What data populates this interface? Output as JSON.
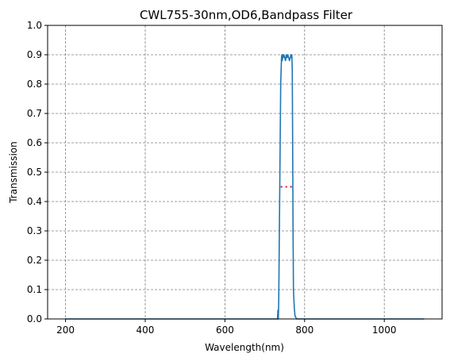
{
  "chart_data": {
    "type": "line",
    "title": "CWL755-30nm,OD6,Bandpass Filter",
    "xlabel": "Wavelength(nm)",
    "ylabel": "Transmission",
    "xlim": [
      155,
      1145
    ],
    "ylim": [
      0,
      1.0
    ],
    "grid": true,
    "xticks": [
      {
        "value": 200,
        "label": "200"
      },
      {
        "value": 400,
        "label": "400"
      },
      {
        "value": 600,
        "label": "600"
      },
      {
        "value": 800,
        "label": "800"
      },
      {
        "value": 1000,
        "label": "1000"
      }
    ],
    "yticks": [
      {
        "value": 0.0,
        "label": "0.0"
      },
      {
        "value": 0.1,
        "label": "0.1"
      },
      {
        "value": 0.2,
        "label": "0.2"
      },
      {
        "value": 0.3,
        "label": "0.3"
      },
      {
        "value": 0.4,
        "label": "0.4"
      },
      {
        "value": 0.5,
        "label": "0.5"
      },
      {
        "value": 0.6,
        "label": "0.6"
      },
      {
        "value": 0.7,
        "label": "0.7"
      },
      {
        "value": 0.8,
        "label": "0.8"
      },
      {
        "value": 0.9,
        "label": "0.9"
      },
      {
        "value": 1.0,
        "label": "1.0"
      }
    ],
    "series": [
      {
        "color": "#1f77b4",
        "style": "solid",
        "x": [
          200,
          300,
          400,
          500,
          600,
          700,
          725,
          732,
          733,
          734,
          735,
          736,
          738,
          740,
          742,
          743,
          744,
          745,
          746,
          748,
          750,
          752,
          754,
          756,
          758,
          760,
          762,
          764,
          766,
          767,
          768,
          769,
          770,
          771,
          772,
          774,
          776,
          780,
          800,
          900,
          1000,
          1100
        ],
        "y": [
          0.0,
          0.0,
          0.0,
          0.0,
          0.0,
          0.0,
          0.0,
          0.0,
          0.03,
          0.0,
          0.05,
          0.2,
          0.5,
          0.8,
          0.89,
          0.9,
          0.88,
          0.9,
          0.89,
          0.9,
          0.89,
          0.88,
          0.9,
          0.89,
          0.9,
          0.89,
          0.88,
          0.89,
          0.9,
          0.89,
          0.9,
          0.85,
          0.6,
          0.3,
          0.1,
          0.04,
          0.01,
          0.0,
          0.0,
          0.0,
          0.0,
          0.0
        ]
      },
      {
        "color": "#e8001c",
        "style": "dotted",
        "x": [
          740,
          770
        ],
        "y": [
          0.45,
          0.45
        ]
      }
    ]
  }
}
